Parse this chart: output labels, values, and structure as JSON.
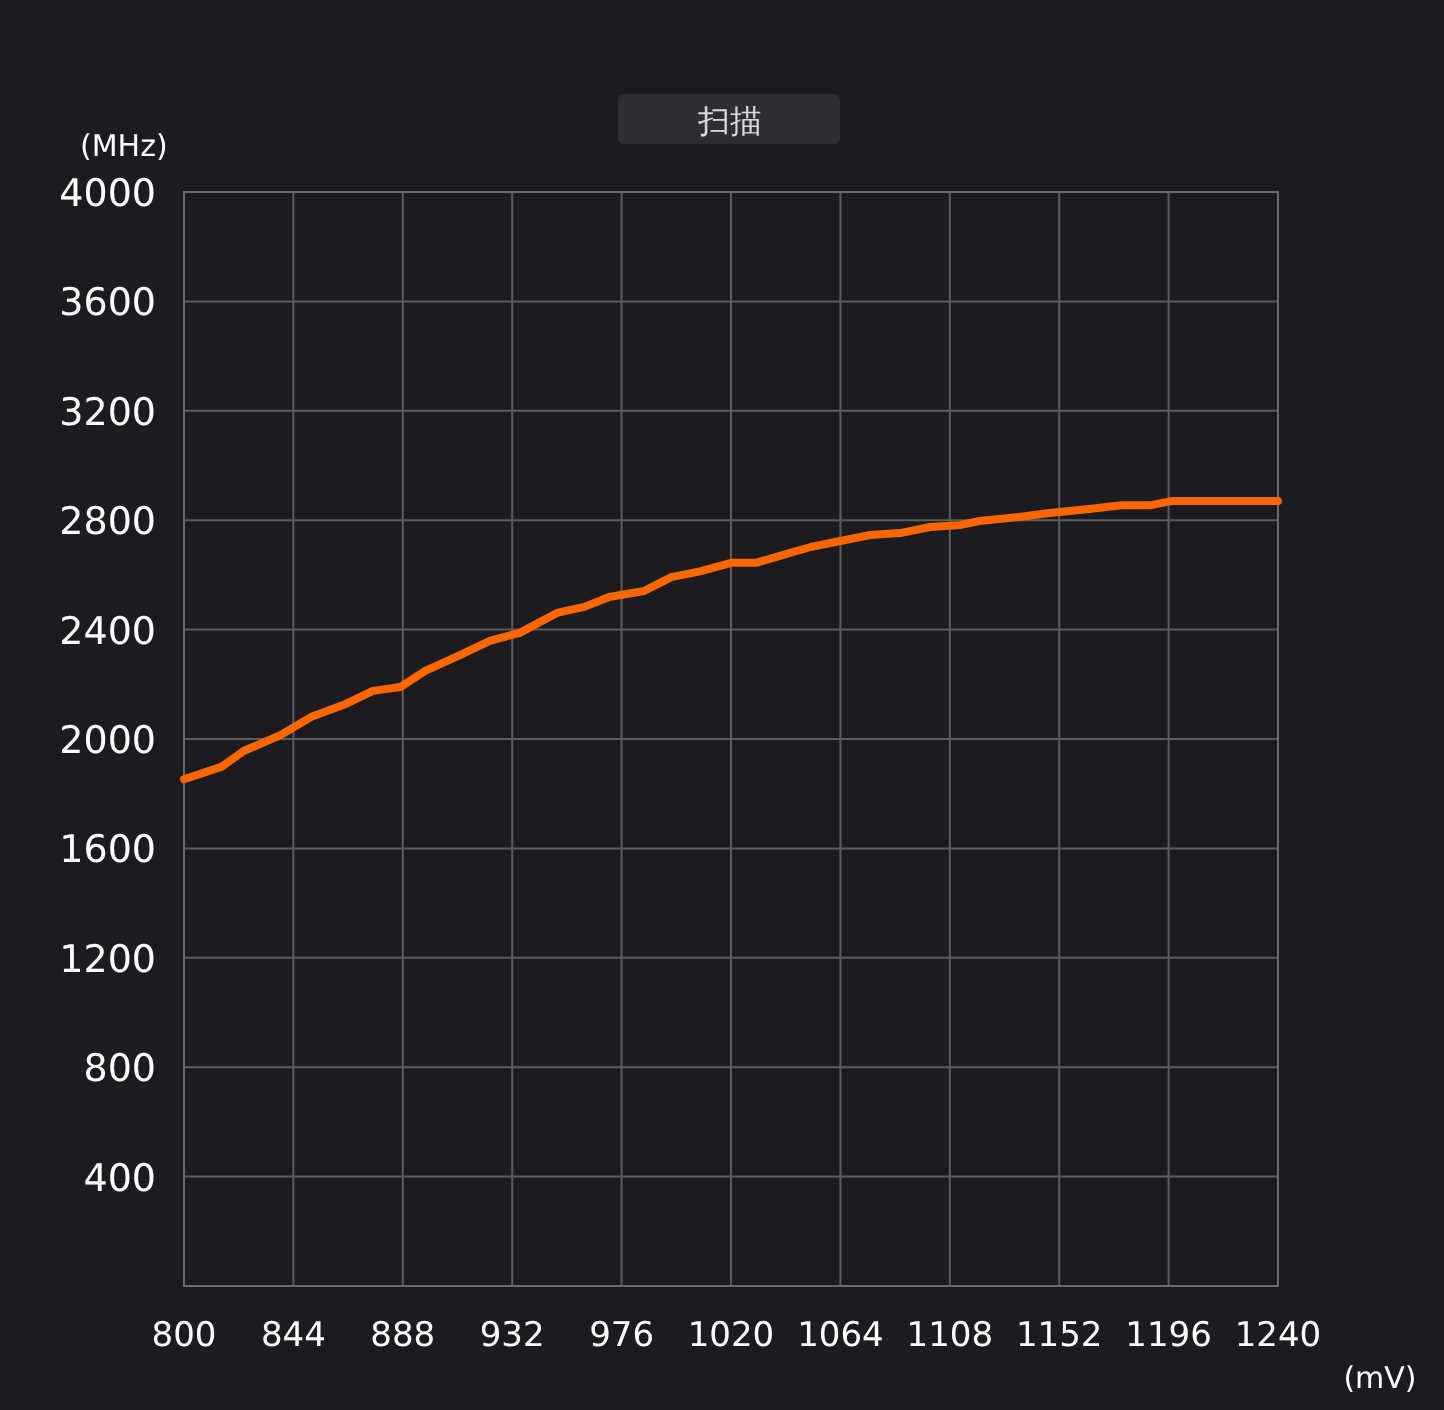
{
  "chart_data": {
    "type": "line",
    "xlabel": "(mV)",
    "ylabel": "(MHz)",
    "annotations": [
      "扫描"
    ],
    "x": [
      800,
      815,
      824,
      839,
      851,
      864,
      876,
      887,
      897,
      911,
      923,
      935,
      950,
      961,
      971,
      985,
      996,
      1008,
      1020,
      1030,
      1041,
      1052,
      1064,
      1076,
      1088,
      1100,
      1112,
      1120,
      1136,
      1148,
      1164,
      1177,
      1189,
      1197,
      1240
    ],
    "series": [
      {
        "color": "#ff6600",
        "values": [
          1853,
          1898,
          1956,
          2015,
          2080,
          2124,
          2176,
          2190,
          2249,
          2307,
          2359,
          2388,
          2461,
          2483,
          2519,
          2541,
          2592,
          2614,
          2644,
          2644,
          2673,
          2702,
          2724,
          2746,
          2753,
          2775,
          2782,
          2797,
          2812,
          2826,
          2841,
          2855,
          2855,
          2870,
          2870
        ]
      }
    ],
    "xlim": [
      800,
      1240
    ],
    "xticks": [
      800,
      844,
      888,
      932,
      976,
      1020,
      1064,
      1108,
      1152,
      1196,
      1240
    ],
    "ylim": [
      0,
      4000
    ],
    "yticks": [
      {
        "value": 0,
        "label": null
      },
      400,
      800,
      1200,
      1600,
      2000,
      2400,
      2800,
      3200,
      3600,
      4000
    ],
    "grid": true,
    "marker": "none",
    "line_style": "solid"
  }
}
